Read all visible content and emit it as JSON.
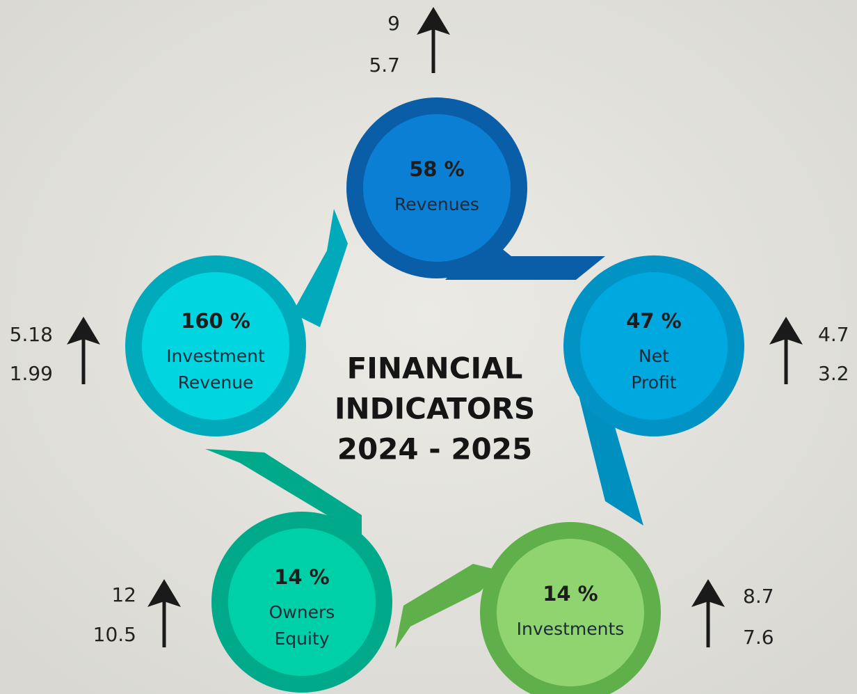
{
  "title": [
    "FINANCIAL",
    "INDICATORS",
    "2024 - 2025"
  ],
  "indicators": [
    {
      "percent": "58 %",
      "name": [
        "Revenues"
      ],
      "top": "9",
      "bottom": "5.7"
    },
    {
      "percent": "47 %",
      "name": [
        "Net",
        "Profit"
      ],
      "top": "4.7",
      "bottom": "3.2"
    },
    {
      "percent": "14 %",
      "name": [
        "Investments"
      ],
      "top": "8.7",
      "bottom": "7.6"
    },
    {
      "percent": "14 %",
      "name": [
        "Owners",
        "Equity"
      ],
      "top": "12",
      "bottom": "10.5"
    },
    {
      "percent": "160 %",
      "name": [
        "Investment",
        "Revenue"
      ],
      "top": "5.18",
      "bottom": "1.99"
    }
  ]
}
